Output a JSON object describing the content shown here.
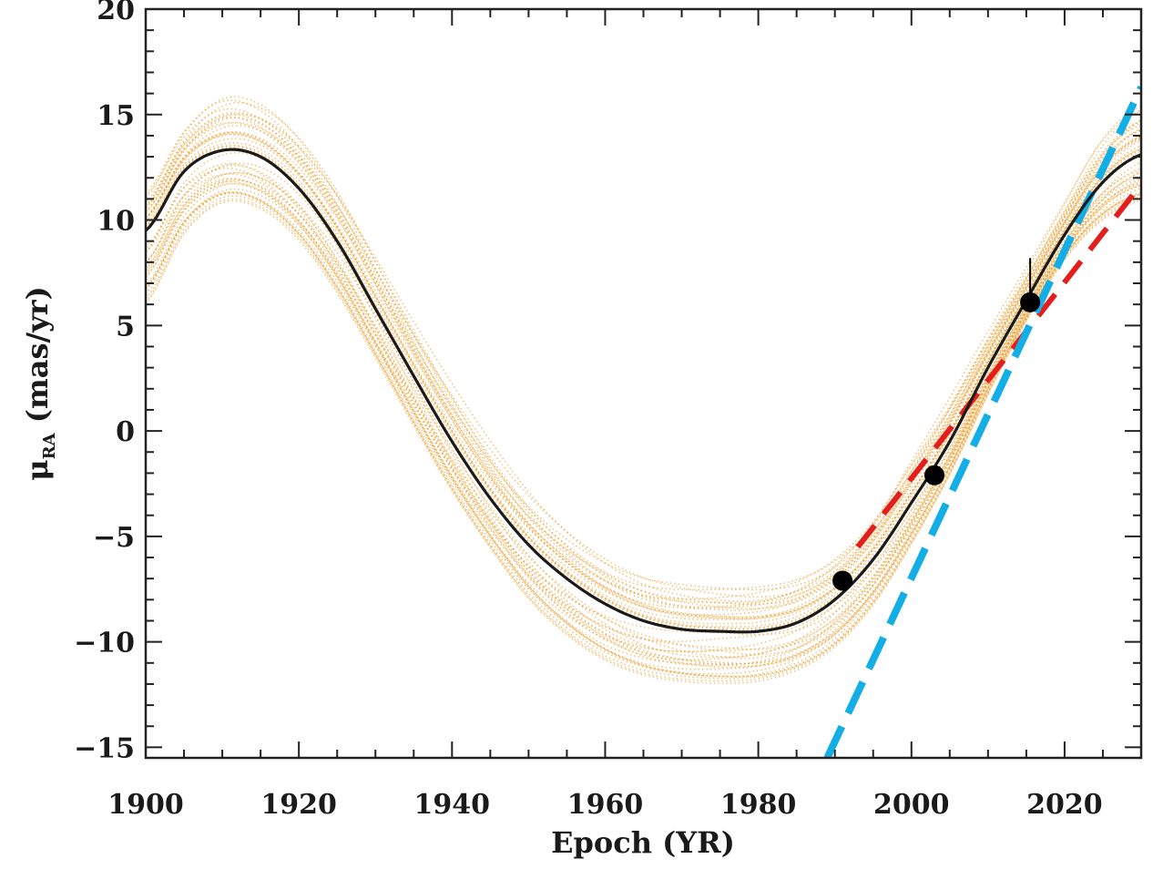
{
  "chart_data": {
    "type": "line",
    "title": "",
    "xlabel": "Epoch (YR)",
    "ylabel": {
      "symbol": "μ",
      "subscript": "RA",
      "rest": " (mas/yr)"
    },
    "xlim": [
      1900,
      2030
    ],
    "ylim": [
      -15.5,
      20
    ],
    "x_ticks": [
      1900,
      1920,
      1940,
      1960,
      1980,
      2000,
      2020
    ],
    "x_tick_labels": [
      "1900",
      "1920",
      "1940",
      "1960",
      "1980",
      "2000",
      "2020"
    ],
    "y_ticks": [
      -15,
      -10,
      -5,
      0,
      5,
      10,
      15,
      20
    ],
    "y_tick_labels": [
      "−15",
      "−10",
      "−5",
      "0",
      "5",
      "10",
      "15",
      "20"
    ],
    "grid": false,
    "colors": {
      "best_fit": "#1a1a1a",
      "orbit_samples": "#e8961e",
      "red_tangent": "#e41d1d",
      "blue_tangent": "#14aee6",
      "points": "#000000"
    },
    "series": [
      {
        "style": "solid",
        "x": [
          1900,
          1905,
          1910,
          1915,
          1920,
          1925,
          1930,
          1935,
          1940,
          1945,
          1950,
          1955,
          1960,
          1965,
          1970,
          1975,
          1980,
          1985,
          1990,
          1995,
          2000,
          2005,
          2010,
          2015,
          2020,
          2025,
          2030
        ],
        "y": [
          9.5,
          12.3,
          13.3,
          13.0,
          11.5,
          9.0,
          5.8,
          2.6,
          -0.5,
          -3.2,
          -5.4,
          -7.0,
          -8.2,
          -9.0,
          -9.4,
          -9.5,
          -9.5,
          -9.1,
          -8.0,
          -6.1,
          -3.4,
          -0.5,
          3.0,
          6.2,
          9.3,
          11.8,
          13.1
        ]
      },
      {
        "style": "dotted-band",
        "x": [
          1900,
          1905,
          1910,
          1915,
          1920,
          1925,
          1930,
          1935,
          1940,
          1945,
          1950,
          1955,
          1960,
          1965,
          1970,
          1975,
          1980,
          1985,
          1990,
          1995,
          2000,
          2005,
          2010,
          2015,
          2020,
          2025,
          2030
        ],
        "y_low": [
          6.0,
          9.3,
          10.8,
          10.5,
          9.0,
          6.5,
          3.4,
          0.2,
          -2.9,
          -5.6,
          -8.0,
          -9.7,
          -10.9,
          -11.6,
          -11.9,
          -12.0,
          -11.9,
          -11.4,
          -10.3,
          -8.3,
          -5.4,
          -2.1,
          1.7,
          5.2,
          8.1,
          10.0,
          10.9
        ],
        "y_high": [
          11.5,
          14.5,
          16.2,
          16.0,
          14.5,
          12.0,
          8.8,
          5.5,
          2.4,
          -0.4,
          -2.8,
          -4.6,
          -5.9,
          -6.7,
          -7.0,
          -7.1,
          -7.0,
          -6.6,
          -5.6,
          -3.8,
          -1.0,
          1.8,
          4.8,
          7.8,
          10.9,
          14.0,
          15.6
        ]
      }
    ],
    "points": [
      {
        "x": 1991,
        "y": -7.1
      },
      {
        "x": 2003,
        "y": -2.1
      },
      {
        "x": 2015.5,
        "y": 6.1,
        "err_hi": 8.2
      }
    ],
    "tangent_lines": [
      {
        "color": "red",
        "style": "dashed",
        "x": [
          1993,
          2030
        ],
        "y": [
          -5.5,
          11.7
        ]
      },
      {
        "color": "blue",
        "style": "dashed",
        "x": [
          1989,
          2030
        ],
        "y": [
          -15.5,
          16.3
        ]
      }
    ]
  }
}
